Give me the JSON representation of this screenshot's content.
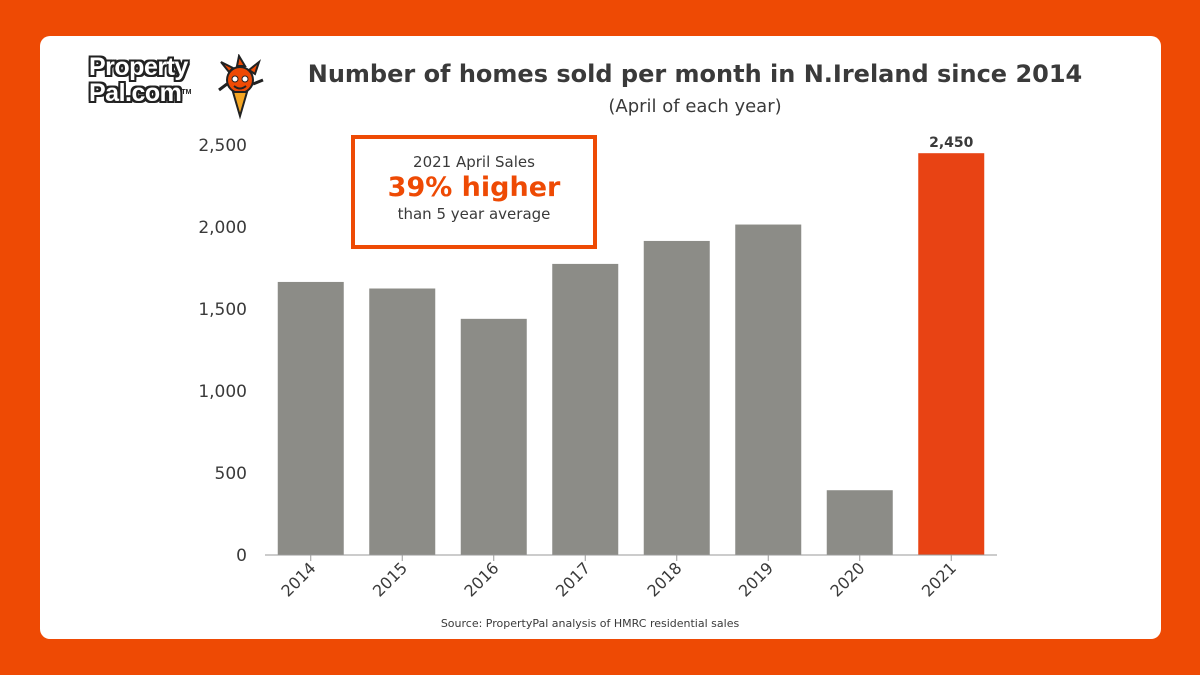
{
  "logo": {
    "line1": "Property",
    "line2": "Pal.com",
    "tm": "TM"
  },
  "title": "Number of homes sold per month in N.Ireland since 2014",
  "subtitle": "(April of each year)",
  "callout": {
    "line1": "2021 April Sales",
    "highlight": "39% higher",
    "line3": "than 5 year average"
  },
  "source": "Source: PropertyPal analysis of HMRC residential sales",
  "colors": {
    "background": "#ee4a04",
    "bar": "#8c8c87",
    "highlight_bar": "#e84314",
    "text": "#3a3a3a"
  },
  "chart_data": {
    "type": "bar",
    "title": "Number of homes sold per month in N.Ireland since 2014",
    "subtitle": "(April of each year)",
    "categories": [
      "2014",
      "2015",
      "2016",
      "2017",
      "2018",
      "2019",
      "2020",
      "2021"
    ],
    "values": [
      1665,
      1625,
      1440,
      1775,
      1915,
      2015,
      395,
      2450
    ],
    "highlight_index": 7,
    "data_labels": {
      "2021": "2,450"
    },
    "ylim": [
      0,
      2500
    ],
    "yticks": [
      0,
      500,
      1000,
      1500,
      2000,
      2500
    ],
    "ytick_labels": [
      "0",
      "500",
      "1,000",
      "1,500",
      "2,000",
      "2,500"
    ],
    "grid": false,
    "legend": "none"
  }
}
